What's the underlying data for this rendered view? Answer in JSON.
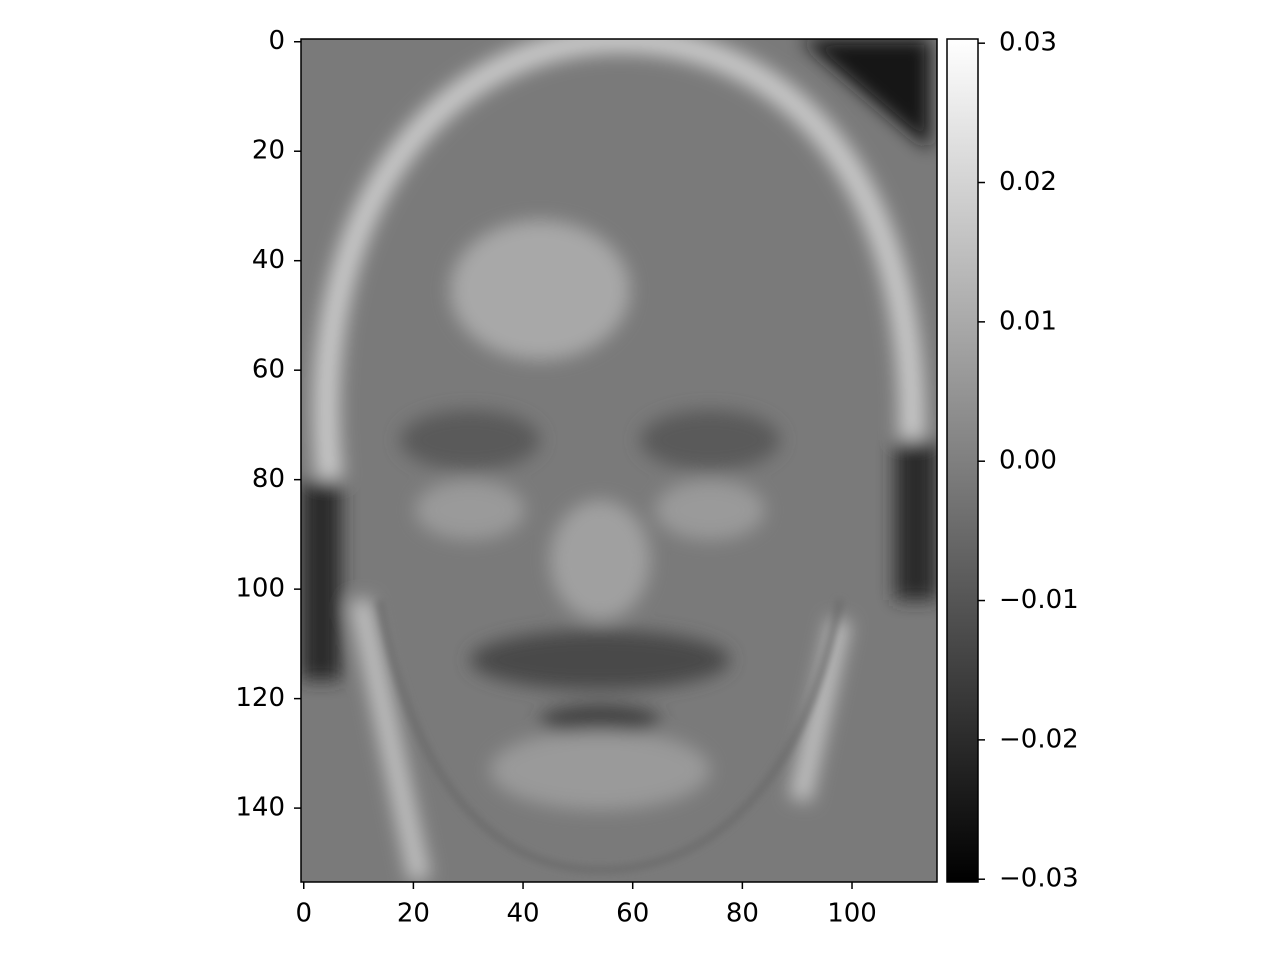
{
  "chart_data": {
    "type": "image",
    "colormap": "gray",
    "cmap_colors": [
      "#000000",
      "#ffffff"
    ],
    "xlim": [
      -0.5,
      115.5
    ],
    "xticks": [
      0,
      20,
      40,
      60,
      80,
      100
    ],
    "ylim": [
      153.5,
      -0.5
    ],
    "yticks": [
      0,
      20,
      40,
      60,
      80,
      100,
      120,
      140
    ],
    "clim": [
      -0.0302,
      0.0303
    ],
    "cticks": [
      {
        "value": -0.03,
        "label": "−0.03"
      },
      {
        "value": -0.02,
        "label": "−0.02"
      },
      {
        "value": -0.01,
        "label": "−0.01"
      },
      {
        "value": 0,
        "label": "0.00"
      },
      0.01,
      0.02,
      0.03
    ]
  }
}
